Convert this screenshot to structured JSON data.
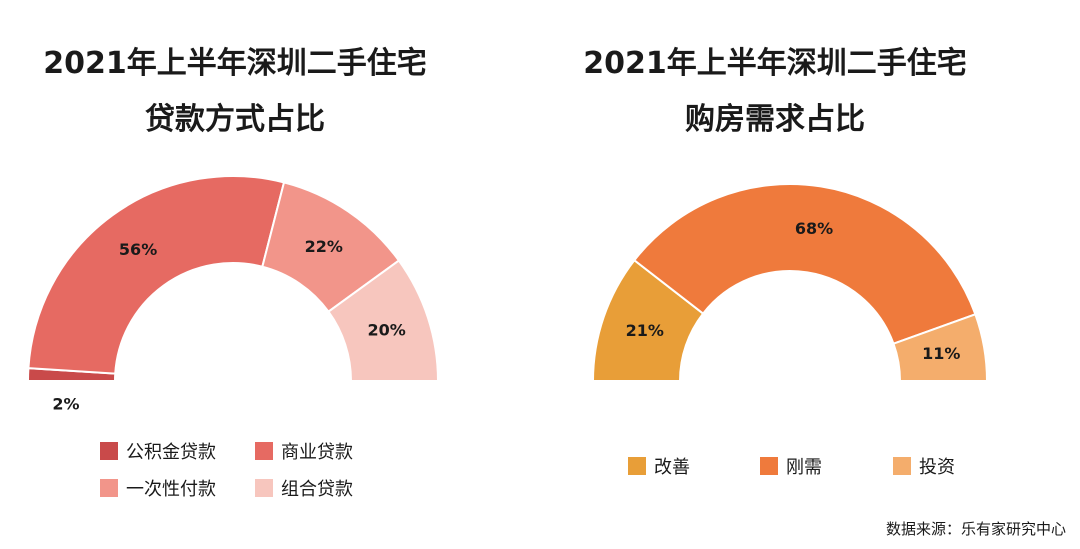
{
  "chart_data": [
    {
      "type": "pie",
      "title_line1": "2021年上半年深圳二手住宅",
      "title_line2": "贷款方式占比",
      "slices": [
        {
          "label": "公积金贷款",
          "value": 2,
          "display": "2%",
          "color": "#c94a4a"
        },
        {
          "label": "商业贷款",
          "value": 56,
          "display": "56%",
          "color": "#e66a62"
        },
        {
          "label": "一次性付款",
          "value": 22,
          "display": "22%",
          "color": "#f2958a"
        },
        {
          "label": "组合贷款",
          "value": 20,
          "display": "20%",
          "color": "#f7c6be"
        }
      ]
    },
    {
      "type": "pie",
      "title_line1": "2021年上半年深圳二手住宅",
      "title_line2": "购房需求占比",
      "slices": [
        {
          "label": "改善",
          "value": 21,
          "display": "21%",
          "color": "#e89e38"
        },
        {
          "label": "刚需",
          "value": 68,
          "display": "68%",
          "color": "#ef7a3c"
        },
        {
          "label": "投资",
          "value": 11,
          "display": "11%",
          "color": "#f4ad6c"
        }
      ]
    }
  ],
  "source": "数据来源：乐有家研究中心"
}
